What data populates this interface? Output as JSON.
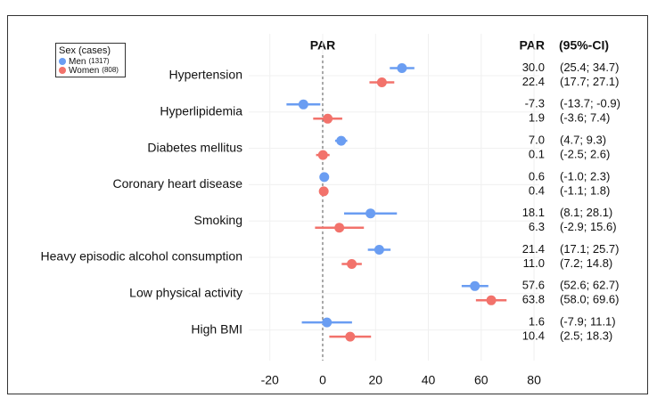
{
  "chart_data": {
    "type": "forest",
    "title": "PAR",
    "table_headers": [
      "PAR",
      "(95%-CI)"
    ],
    "legend_title": "Sex (cases)",
    "categories": [
      "Hypertension",
      "Hyperlipidemia",
      "Diabetes mellitus",
      "Coronary heart disease",
      "Smoking",
      "Heavy episodic alcohol consumption",
      "Low physical activity",
      "High BMI"
    ],
    "series": [
      {
        "name": "Men",
        "cases_label": "(1317)",
        "color": "#6a9df2",
        "values": [
          30.0,
          -7.3,
          7.0,
          0.6,
          18.1,
          21.4,
          57.6,
          1.6
        ],
        "value_labels": [
          "30.0",
          "-7.3",
          "7.0",
          "0.6",
          "18.1",
          "21.4",
          "57.6",
          "1.6"
        ],
        "lower": [
          25.4,
          -13.7,
          4.7,
          -1.0,
          8.1,
          17.1,
          52.6,
          -7.9
        ],
        "upper": [
          34.7,
          -0.9,
          9.3,
          2.3,
          28.1,
          25.7,
          62.7,
          11.1
        ],
        "ci_labels": [
          "(25.4; 34.7)",
          "(-13.7; -0.9)",
          "(4.7; 9.3)",
          "(-1.0; 2.3)",
          "(8.1; 28.1)",
          "(17.1; 25.7)",
          "(52.6; 62.7)",
          "(-7.9; 11.1)"
        ]
      },
      {
        "name": "Women",
        "cases_label": "(808)",
        "color": "#f2726b",
        "values": [
          22.4,
          1.9,
          0.1,
          0.4,
          6.3,
          11.0,
          63.8,
          10.4
        ],
        "value_labels": [
          "22.4",
          "1.9",
          "0.1",
          "0.4",
          "6.3",
          "11.0",
          "63.8",
          "10.4"
        ],
        "lower": [
          17.7,
          -3.6,
          -2.5,
          -1.1,
          -2.9,
          7.2,
          58.0,
          2.5
        ],
        "upper": [
          27.1,
          7.4,
          2.6,
          1.8,
          15.6,
          14.8,
          69.6,
          18.3
        ],
        "ci_labels": [
          "(17.7; 27.1)",
          "(-3.6; 7.4)",
          "(-2.5; 2.6)",
          "(-1.1; 1.8)",
          "(-2.9; 15.6)",
          "(7.2; 14.8)",
          "(58.0; 69.6)",
          "(2.5; 18.3)"
        ]
      }
    ],
    "xlim": [
      -28,
      82
    ],
    "xticks": [
      -20,
      0,
      20,
      40,
      60,
      80
    ],
    "reference_line": 0,
    "grid": true
  }
}
